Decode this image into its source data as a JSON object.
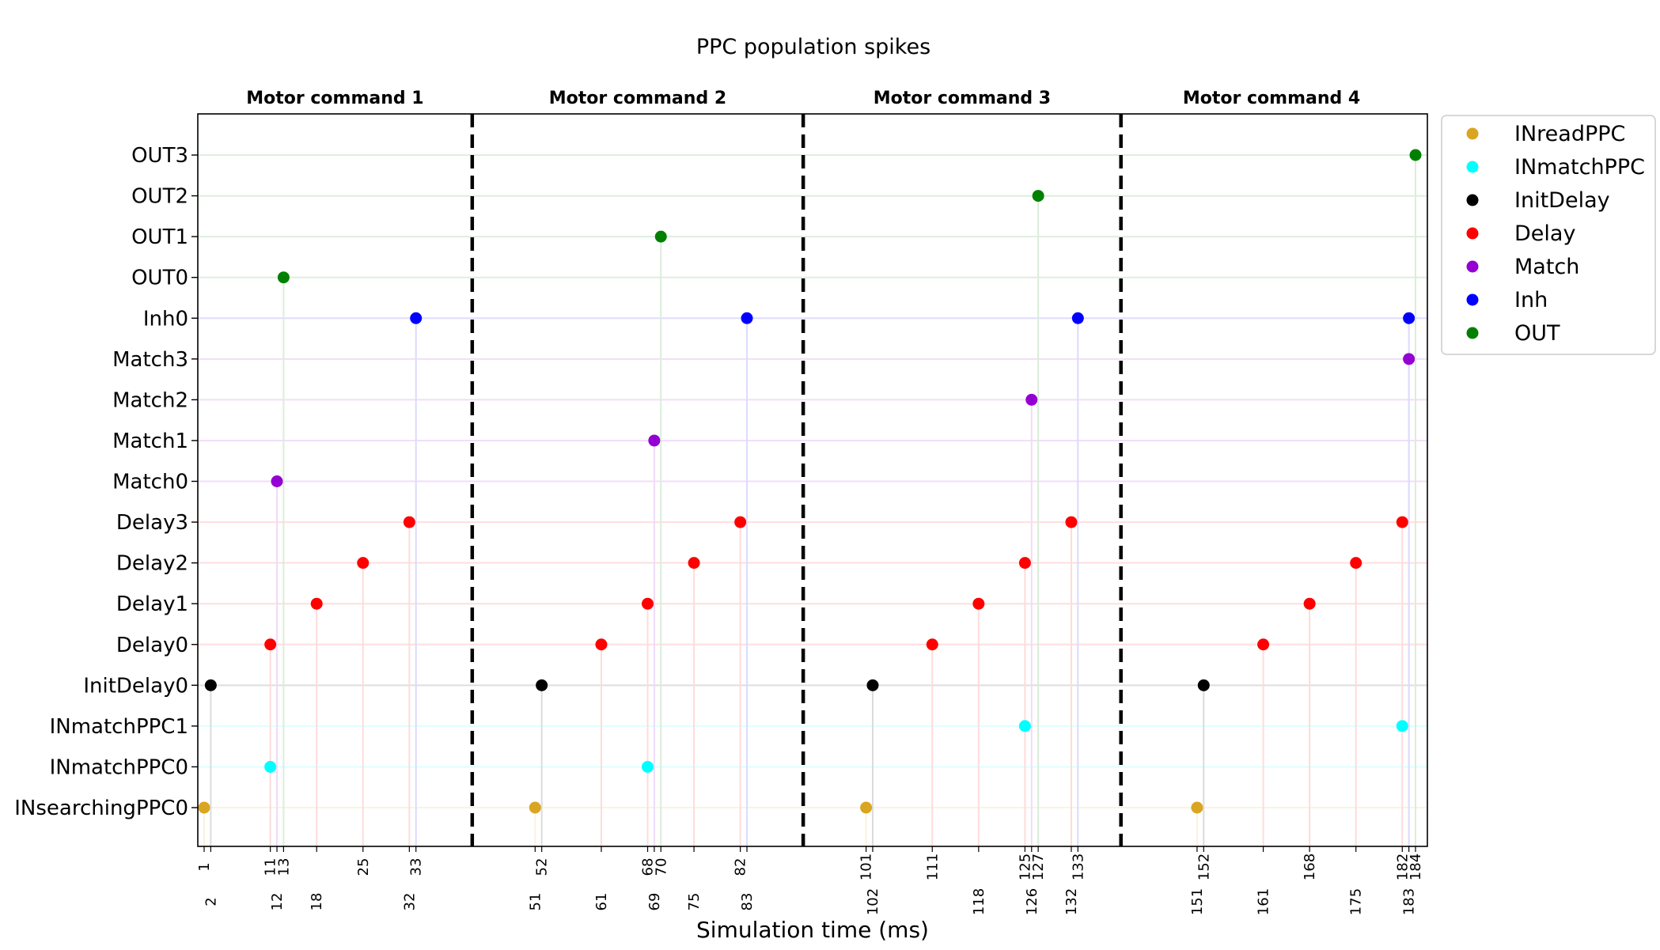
{
  "chart_data": {
    "type": "scatter",
    "title": "PPC population spikes",
    "xlabel": "Simulation time (ms)",
    "ylabel": "",
    "xlim": [
      0,
      185
    ],
    "grid": false,
    "legend_position": "outside-top-right",
    "rows": [
      "INsearchingPPC0",
      "INmatchPPC0",
      "INmatchPPC1",
      "InitDelay0",
      "Delay0",
      "Delay1",
      "Delay2",
      "Delay3",
      "Match0",
      "Match1",
      "Match2",
      "Match3",
      "Inh0",
      "OUT0",
      "OUT1",
      "OUT2",
      "OUT3"
    ],
    "sections": [
      {
        "label": "Motor command 1",
        "start": 0,
        "end": 41.5
      },
      {
        "label": "Motor command 2",
        "start": 41.5,
        "end": 91.5
      },
      {
        "label": "Motor command 3",
        "start": 91.5,
        "end": 139.5
      },
      {
        "label": "Motor command 4",
        "start": 139.5,
        "end": 185
      }
    ],
    "separators": [
      41.5,
      91.5,
      139.5
    ],
    "series": [
      {
        "name": "INreadPPC",
        "color": "#DAA520",
        "points": [
          {
            "t": 1,
            "row": "INsearchingPPC0"
          },
          {
            "t": 51,
            "row": "INsearchingPPC0"
          },
          {
            "t": 101,
            "row": "INsearchingPPC0"
          },
          {
            "t": 151,
            "row": "INsearchingPPC0"
          }
        ]
      },
      {
        "name": "INmatchPPC",
        "color": "#00FFFF",
        "points": [
          {
            "t": 11,
            "row": "INmatchPPC0"
          },
          {
            "t": 68,
            "row": "INmatchPPC0"
          },
          {
            "t": 125,
            "row": "INmatchPPC1"
          },
          {
            "t": 182,
            "row": "INmatchPPC1"
          }
        ]
      },
      {
        "name": "InitDelay",
        "color": "#000000",
        "points": [
          {
            "t": 2,
            "row": "InitDelay0"
          },
          {
            "t": 52,
            "row": "InitDelay0"
          },
          {
            "t": 102,
            "row": "InitDelay0"
          },
          {
            "t": 152,
            "row": "InitDelay0"
          }
        ]
      },
      {
        "name": "Delay",
        "color": "#FF0000",
        "points": [
          {
            "t": 11,
            "row": "Delay0"
          },
          {
            "t": 18,
            "row": "Delay1"
          },
          {
            "t": 25,
            "row": "Delay2"
          },
          {
            "t": 32,
            "row": "Delay3"
          },
          {
            "t": 61,
            "row": "Delay0"
          },
          {
            "t": 68,
            "row": "Delay1"
          },
          {
            "t": 75,
            "row": "Delay2"
          },
          {
            "t": 82,
            "row": "Delay3"
          },
          {
            "t": 111,
            "row": "Delay0"
          },
          {
            "t": 118,
            "row": "Delay1"
          },
          {
            "t": 125,
            "row": "Delay2"
          },
          {
            "t": 132,
            "row": "Delay3"
          },
          {
            "t": 161,
            "row": "Delay0"
          },
          {
            "t": 168,
            "row": "Delay1"
          },
          {
            "t": 175,
            "row": "Delay2"
          },
          {
            "t": 182,
            "row": "Delay3"
          }
        ]
      },
      {
        "name": "Match",
        "color": "#9400D3",
        "points": [
          {
            "t": 12,
            "row": "Match0"
          },
          {
            "t": 69,
            "row": "Match1"
          },
          {
            "t": 126,
            "row": "Match2"
          },
          {
            "t": 183,
            "row": "Match3"
          }
        ]
      },
      {
        "name": "Inh",
        "color": "#0000FF",
        "points": [
          {
            "t": 33,
            "row": "Inh0"
          },
          {
            "t": 83,
            "row": "Inh0"
          },
          {
            "t": 133,
            "row": "Inh0"
          },
          {
            "t": 183,
            "row": "Inh0"
          }
        ]
      },
      {
        "name": "OUT",
        "color": "#008000",
        "points": [
          {
            "t": 13,
            "row": "OUT0"
          },
          {
            "t": 70,
            "row": "OUT1"
          },
          {
            "t": 127,
            "row": "OUT2"
          },
          {
            "t": 184,
            "row": "OUT3"
          }
        ]
      }
    ],
    "xticks_top_row": [
      1,
      11,
      13,
      25,
      33,
      52,
      68,
      70,
      82,
      101,
      111,
      125,
      127,
      133,
      152,
      168,
      182,
      184
    ],
    "xticks_bottom_row": [
      2,
      12,
      18,
      32,
      51,
      61,
      69,
      75,
      83,
      102,
      118,
      126,
      132,
      151,
      161,
      175,
      183
    ]
  }
}
